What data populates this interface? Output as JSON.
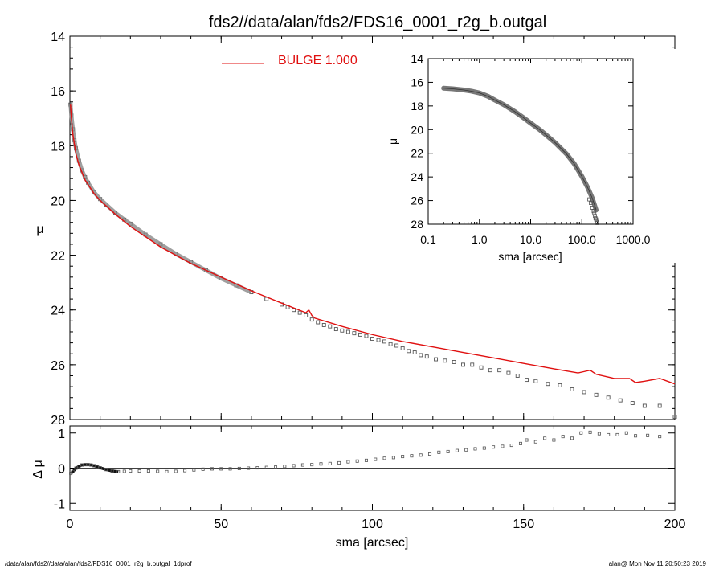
{
  "title": "fds2//data/alan/fds2/FDS16_0001_r2g_b.outgal",
  "footer": {
    "left": "/data/alan/fds2//data/alan/fds2/FDS16_0001_r2g_b.outgal_1dprof",
    "right": "alan@  Mon Nov 11 20:50:23 2019"
  },
  "colors": {
    "model": "#e01010",
    "data": "#555555",
    "profile": "#888888",
    "axis": "#000000"
  },
  "chart_data": [
    {
      "type": "scatter",
      "name": "main-profile",
      "ylabel": "μ",
      "xlim": [
        0,
        200
      ],
      "ylim": [
        28,
        14
      ],
      "y_inverted": true,
      "x_ticks": [
        0,
        50,
        100,
        150,
        200
      ],
      "y_ticks": [
        14,
        16,
        18,
        20,
        22,
        24,
        26,
        28
      ],
      "legend": {
        "label": "BULGE  1.000",
        "color": "#e01010",
        "placement": "top-center"
      },
      "series": [
        {
          "name": "BULGE  1.000",
          "kind": "line",
          "x": [
            0.2,
            0.5,
            1,
            2,
            3,
            5,
            8,
            10,
            15,
            20,
            30,
            40,
            50,
            60,
            70,
            78,
            79,
            80,
            81,
            90,
            100,
            110,
            120,
            130,
            140,
            150,
            160,
            168,
            170,
            172,
            174,
            180,
            185,
            187,
            190,
            195,
            200
          ],
          "y": [
            16.5,
            17.0,
            17.6,
            18.3,
            18.7,
            19.25,
            19.75,
            20.0,
            20.5,
            20.95,
            21.7,
            22.3,
            22.8,
            23.3,
            23.75,
            24.1,
            24.0,
            24.2,
            24.3,
            24.6,
            24.9,
            25.15,
            25.35,
            25.55,
            25.75,
            25.95,
            26.15,
            26.3,
            26.25,
            26.2,
            26.35,
            26.5,
            26.5,
            26.65,
            26.6,
            26.5,
            26.7
          ]
        },
        {
          "name": "data",
          "kind": "markers",
          "x": [
            0.2,
            0.5,
            1,
            1.5,
            2,
            3,
            4,
            5,
            6,
            8,
            10,
            12,
            15,
            18,
            20,
            25,
            30,
            35,
            40,
            45,
            50,
            55,
            60,
            65,
            70,
            72,
            74,
            76,
            78,
            80,
            82,
            84,
            86,
            88,
            90,
            92,
            94,
            96,
            98,
            100,
            102,
            104,
            106,
            108,
            110,
            112,
            114,
            116,
            118,
            121,
            124,
            127,
            130,
            133,
            136,
            139,
            142,
            145,
            148,
            151,
            154,
            158,
            162,
            166,
            170,
            174,
            178,
            182,
            186,
            190,
            195,
            200
          ],
          "y": [
            16.5,
            16.9,
            17.4,
            17.8,
            18.1,
            18.55,
            18.9,
            19.15,
            19.35,
            19.7,
            19.95,
            20.15,
            20.45,
            20.7,
            20.85,
            21.25,
            21.6,
            21.95,
            22.25,
            22.55,
            22.85,
            23.1,
            23.35,
            23.6,
            23.8,
            23.9,
            24.0,
            24.1,
            24.2,
            24.35,
            24.45,
            24.55,
            24.6,
            24.7,
            24.75,
            24.8,
            24.85,
            24.9,
            24.95,
            25.05,
            25.1,
            25.15,
            25.25,
            25.3,
            25.4,
            25.5,
            25.55,
            25.65,
            25.7,
            25.8,
            25.85,
            25.9,
            26.0,
            26.0,
            26.1,
            26.2,
            26.2,
            26.3,
            26.4,
            26.55,
            26.6,
            26.7,
            26.75,
            26.9,
            27.0,
            27.1,
            27.2,
            27.3,
            27.4,
            27.5,
            27.5,
            27.9
          ]
        }
      ]
    },
    {
      "type": "scatter",
      "name": "residuals",
      "xlabel": "sma [arcsec]",
      "ylabel": "Δ μ",
      "xlim": [
        0,
        200
      ],
      "ylim": [
        -1.2,
        1.2
      ],
      "x_ticks": [
        0,
        50,
        100,
        150,
        200
      ],
      "y_ticks": [
        -1,
        0,
        1
      ],
      "series": [
        {
          "name": "residual",
          "kind": "markers",
          "x": [
            0.3,
            1,
            2,
            3,
            4,
            5,
            6,
            7,
            8,
            9,
            10,
            12,
            14,
            16,
            18,
            20,
            23,
            26,
            29,
            32,
            35,
            38,
            41,
            44,
            47,
            50,
            53,
            56,
            59,
            62,
            65,
            68,
            71,
            74,
            77,
            80,
            83,
            86,
            89,
            92,
            95,
            98,
            101,
            104,
            107,
            110,
            113,
            116,
            119,
            122,
            125,
            128,
            131,
            134,
            137,
            140,
            143,
            146,
            149,
            151,
            154,
            157,
            160,
            163,
            166,
            169,
            172,
            175,
            178,
            181,
            184,
            187,
            191,
            195
          ],
          "y": [
            -0.15,
            -0.1,
            0.0,
            0.05,
            0.09,
            0.1,
            0.1,
            0.09,
            0.07,
            0.04,
            0.01,
            -0.04,
            -0.08,
            -0.1,
            -0.09,
            -0.08,
            -0.08,
            -0.08,
            -0.09,
            -0.1,
            -0.09,
            -0.07,
            -0.05,
            -0.03,
            -0.02,
            -0.02,
            -0.02,
            -0.01,
            0.0,
            0.01,
            0.02,
            0.03,
            0.05,
            0.07,
            0.09,
            0.1,
            0.12,
            0.13,
            0.15,
            0.18,
            0.2,
            0.22,
            0.25,
            0.28,
            0.3,
            0.33,
            0.35,
            0.37,
            0.4,
            0.45,
            0.47,
            0.5,
            0.52,
            0.55,
            0.57,
            0.6,
            0.62,
            0.65,
            0.7,
            0.8,
            0.75,
            0.85,
            0.8,
            0.9,
            0.85,
            1.0,
            1.02,
            0.98,
            0.95,
            0.95,
            1.0,
            0.92,
            0.93,
            0.9
          ]
        }
      ]
    },
    {
      "type": "scatter",
      "name": "inset-log",
      "xlabel": "sma [arcsec]",
      "ylabel": "μ",
      "x_scale": "log",
      "xlim": [
        0.1,
        1000
      ],
      "ylim": [
        28,
        14
      ],
      "y_inverted": true,
      "x_ticks": [
        0.1,
        1,
        10,
        100,
        1000
      ],
      "x_tick_labels": [
        "0.1",
        "1.0",
        "10.0",
        "100.0",
        "1000.0"
      ],
      "y_ticks": [
        14,
        16,
        18,
        20,
        22,
        24,
        26,
        28
      ],
      "series": [
        {
          "name": "profile",
          "kind": "thick-line",
          "x": [
            0.2,
            0.3,
            0.5,
            0.7,
            1,
            1.5,
            2,
            3,
            5,
            7,
            10,
            15,
            20,
            30,
            50,
            70,
            100,
            130,
            160,
            190
          ],
          "y": [
            16.5,
            16.55,
            16.65,
            16.75,
            16.9,
            17.2,
            17.5,
            17.9,
            18.5,
            18.95,
            19.45,
            20.0,
            20.45,
            21.1,
            22.05,
            22.85,
            23.95,
            24.9,
            25.8,
            26.8
          ]
        },
        {
          "name": "outer-data",
          "kind": "markers",
          "x": [
            140,
            150,
            160,
            170,
            175,
            180,
            185,
            190,
            195,
            200
          ],
          "y": [
            25.9,
            26.2,
            26.6,
            26.9,
            27.1,
            27.3,
            27.5,
            27.6,
            27.8,
            27.9
          ]
        }
      ]
    }
  ]
}
